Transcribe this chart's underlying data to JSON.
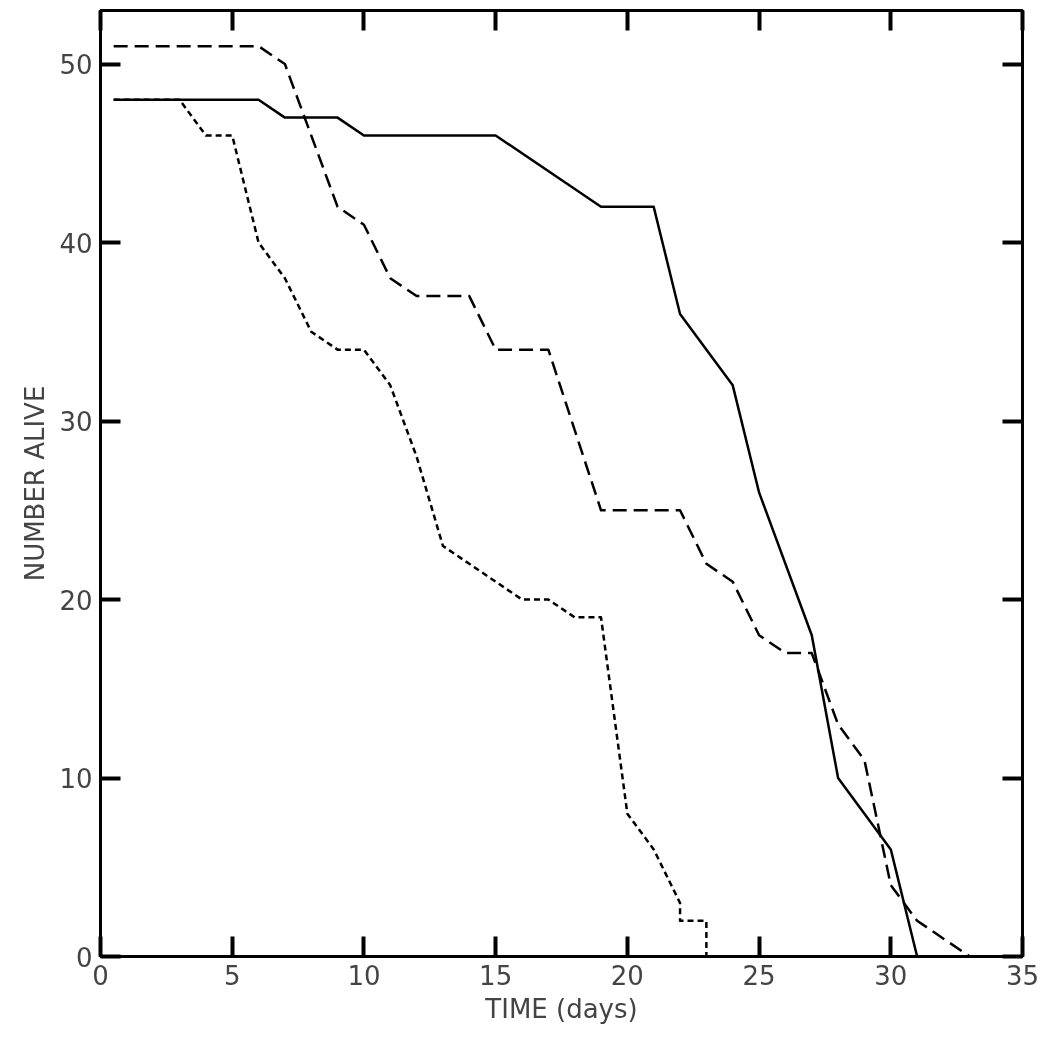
{
  "chart_data": {
    "type": "line",
    "xlabel": "TIME (days)",
    "ylabel": "NUMBER ALIVE",
    "xlim": [
      0,
      35
    ],
    "ylim": [
      0,
      53
    ],
    "xticks": [
      0,
      5,
      10,
      15,
      20,
      25,
      30,
      35
    ],
    "yticks": [
      0,
      10,
      20,
      30,
      40,
      50
    ],
    "grid": false,
    "marker": "none",
    "series": [
      {
        "color": "#000000",
        "line_style": "solid",
        "x": [
          0.5,
          6,
          7,
          9,
          10,
          15,
          19,
          21,
          22,
          24,
          25,
          27,
          28,
          30,
          31
        ],
        "values": [
          48,
          48,
          47,
          47,
          46,
          46,
          42,
          42,
          36,
          32,
          26,
          18,
          10,
          6,
          0
        ]
      },
      {
        "color": "#000000",
        "line_style": "dashed",
        "x": [
          0.5,
          6,
          7,
          8,
          9,
          10,
          11,
          12,
          14,
          15,
          17,
          19,
          22,
          23,
          24,
          25,
          26,
          27,
          28,
          29,
          30,
          31,
          33
        ],
        "values": [
          51,
          51,
          50,
          46,
          42,
          41,
          38,
          37,
          37,
          34,
          34,
          25,
          25,
          22,
          21,
          18,
          17,
          17,
          13,
          11,
          4,
          2,
          0
        ]
      },
      {
        "color": "#000000",
        "line_style": "dotted",
        "x": [
          0.5,
          3,
          4,
          5,
          6,
          7,
          8,
          9,
          10,
          11,
          12,
          13,
          14,
          16,
          17,
          18,
          19,
          20,
          21,
          22,
          22,
          23,
          23
        ],
        "values": [
          48,
          48,
          46,
          46,
          40,
          38,
          35,
          34,
          34,
          32,
          28,
          23,
          22,
          20,
          20,
          19,
          19,
          8,
          6,
          3,
          2,
          2,
          0
        ]
      }
    ]
  }
}
